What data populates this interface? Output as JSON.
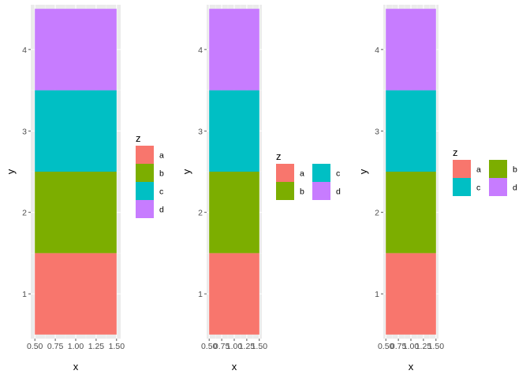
{
  "chart_data": [
    {
      "type": "bar",
      "subtype": "stacked-tile",
      "title": "",
      "xlabel": "x",
      "ylabel": "y",
      "xlim": [
        0.45,
        1.55
      ],
      "ylim": [
        0.45,
        4.55
      ],
      "xticks": [
        0.5,
        0.75,
        1.0,
        1.25,
        1.5
      ],
      "xtick_labels": [
        "0.50",
        "0.75",
        "1.00",
        "1.25",
        "1.50"
      ],
      "yticks": [
        1,
        2,
        3,
        4
      ],
      "ytick_labels": [
        "1",
        "2",
        "3",
        "4"
      ],
      "grid": true,
      "legend": {
        "title": "z",
        "position": "right",
        "layout": "1 column",
        "entries": [
          "a",
          "b",
          "c",
          "d"
        ]
      },
      "tiles": [
        {
          "x": 1,
          "width": 1,
          "y": 1,
          "height": 1,
          "z": "a"
        },
        {
          "x": 1,
          "width": 1,
          "y": 2,
          "height": 1,
          "z": "b"
        },
        {
          "x": 1,
          "width": 1,
          "y": 3,
          "height": 1,
          "z": "c"
        },
        {
          "x": 1,
          "width": 1,
          "y": 4,
          "height": 1,
          "z": "d"
        }
      ]
    },
    {
      "type": "bar",
      "subtype": "stacked-tile",
      "title": "",
      "xlabel": "x",
      "ylabel": "y",
      "xlim": [
        0.45,
        1.55
      ],
      "ylim": [
        0.45,
        4.55
      ],
      "xticks": [
        0.5,
        0.75,
        1.0,
        1.25,
        1.5
      ],
      "xtick_labels": [
        "0.50",
        "0.75",
        "1.00",
        "1.25",
        "1.50"
      ],
      "yticks": [
        1,
        2,
        3,
        4
      ],
      "ytick_labels": [
        "1",
        "2",
        "3",
        "4"
      ],
      "grid": true,
      "legend": {
        "title": "z",
        "position": "right",
        "layout": "2 columns, filled by column",
        "entries": [
          "a",
          "b",
          "c",
          "d"
        ]
      },
      "tiles": [
        {
          "x": 1,
          "width": 1,
          "y": 1,
          "height": 1,
          "z": "a"
        },
        {
          "x": 1,
          "width": 1,
          "y": 2,
          "height": 1,
          "z": "b"
        },
        {
          "x": 1,
          "width": 1,
          "y": 3,
          "height": 1,
          "z": "c"
        },
        {
          "x": 1,
          "width": 1,
          "y": 4,
          "height": 1,
          "z": "d"
        }
      ]
    },
    {
      "type": "bar",
      "subtype": "stacked-tile",
      "title": "",
      "xlabel": "x",
      "ylabel": "y",
      "xlim": [
        0.45,
        1.55
      ],
      "ylim": [
        0.45,
        4.55
      ],
      "xticks": [
        0.5,
        0.75,
        1.0,
        1.25,
        1.5
      ],
      "xtick_labels": [
        "0.50",
        "0.75",
        "1.00",
        "1.25",
        "1.50"
      ],
      "yticks": [
        1,
        2,
        3,
        4
      ],
      "ytick_labels": [
        "1",
        "2",
        "3",
        "4"
      ],
      "grid": true,
      "legend": {
        "title": "z",
        "position": "right",
        "layout": "2 columns, filled by row",
        "entries": [
          "a",
          "b",
          "c",
          "d"
        ]
      },
      "tiles": [
        {
          "x": 1,
          "width": 1,
          "y": 1,
          "height": 1,
          "z": "a"
        },
        {
          "x": 1,
          "width": 1,
          "y": 2,
          "height": 1,
          "z": "b"
        },
        {
          "x": 1,
          "width": 1,
          "y": 3,
          "height": 1,
          "z": "c"
        },
        {
          "x": 1,
          "width": 1,
          "y": 4,
          "height": 1,
          "z": "d"
        }
      ]
    }
  ],
  "colors": {
    "a": "#F8766D",
    "b": "#7CAE00",
    "c": "#00BFC4",
    "d": "#C77CFF",
    "panel_bg": "#EBEBEB",
    "grid_major": "#FFFFFF",
    "grid_minor": "#F5F5F5",
    "axis_text": "#4D4D4D",
    "axis_title": "#000000"
  }
}
